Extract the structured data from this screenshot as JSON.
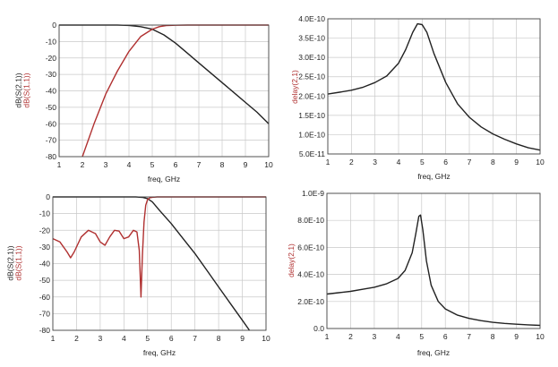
{
  "chart_data": [
    {
      "type": "line",
      "xlabel": "freq, GHz",
      "ylabel_parts": [
        {
          "text": "dB(S(2,1))",
          "color": "#222222"
        },
        {
          "text": "dB(S(1,1))",
          "color": "#b03030"
        }
      ],
      "xlim": [
        1,
        10
      ],
      "ylim": [
        -80,
        0
      ],
      "x_ticks": [
        1,
        2,
        3,
        4,
        5,
        6,
        7,
        8,
        9,
        10
      ],
      "y_ticks": [
        0,
        -10,
        -20,
        -30,
        -40,
        -50,
        -60,
        -70,
        -80
      ],
      "y_tick_labels": [
        "0",
        "-10",
        "-20",
        "-30",
        "-40",
        "-50",
        "-60",
        "-70",
        "-80"
      ],
      "grid": true,
      "series": [
        {
          "color": "#222222",
          "x": [
            1,
            1.5,
            2,
            2.5,
            3,
            3.5,
            4,
            4.5,
            5,
            5.5,
            6,
            6.5,
            7,
            7.5,
            8,
            8.5,
            9,
            9.5,
            10
          ],
          "y": [
            0,
            0,
            0,
            0,
            0,
            0,
            -0.2,
            -1,
            -2.5,
            -6,
            -11,
            -17,
            -23,
            -29,
            -35,
            -41,
            -47,
            -53,
            -60
          ]
        },
        {
          "color": "#b03030",
          "x": [
            2,
            2.5,
            3,
            3.5,
            4,
            4.5,
            5,
            5.3,
            5.6,
            6,
            6.5,
            7,
            8,
            9,
            10
          ],
          "y": [
            -80,
            -60,
            -42,
            -28,
            -16,
            -7,
            -2.5,
            -1,
            -0.3,
            -0.1,
            0,
            0,
            0,
            0,
            0
          ]
        }
      ]
    },
    {
      "type": "line",
      "xlabel": "freq, GHz",
      "ylabel_parts": [
        {
          "text": "delay(2,1)",
          "color": "#b03030"
        }
      ],
      "xlim": [
        1,
        10
      ],
      "ylim": [
        5e-11,
        4e-10
      ],
      "x_ticks": [
        1,
        2,
        3,
        4,
        5,
        6,
        7,
        8,
        9,
        10
      ],
      "y_ticks": [
        5e-11,
        1e-10,
        1.5e-10,
        2e-10,
        2.5e-10,
        3e-10,
        3.5e-10,
        4e-10
      ],
      "y_tick_labels": [
        "5.0E-11",
        "1.0E-10",
        "1.5E-10",
        "2.0E-10",
        "2.5E-10",
        "3.0E-10",
        "3.5E-10",
        "4.0E-10"
      ],
      "grid": true,
      "series": [
        {
          "color": "#222222",
          "x": [
            1,
            1.5,
            2,
            2.5,
            3,
            3.5,
            4,
            4.3,
            4.6,
            4.8,
            5,
            5.2,
            5.5,
            6,
            6.5,
            7,
            7.5,
            8,
            8.5,
            9,
            9.5,
            10
          ],
          "y": [
            2.05e-10,
            2.1e-10,
            2.15e-10,
            2.23e-10,
            2.35e-10,
            2.52e-10,
            2.85e-10,
            3.2e-10,
            3.65e-10,
            3.87e-10,
            3.85e-10,
            3.65e-10,
            3.1e-10,
            2.35e-10,
            1.8e-10,
            1.45e-10,
            1.2e-10,
            1.02e-10,
            8.8e-11,
            7.6e-11,
            6.6e-11,
            6e-11
          ]
        }
      ]
    },
    {
      "type": "line",
      "xlabel": "freq, GHz",
      "ylabel_parts": [
        {
          "text": "dB(S(2,1))",
          "color": "#222222"
        },
        {
          "text": "dB(S(1,1))",
          "color": "#b03030"
        }
      ],
      "xlim": [
        1,
        10
      ],
      "ylim": [
        -80,
        0
      ],
      "x_ticks": [
        1,
        2,
        3,
        4,
        5,
        6,
        7,
        8,
        9,
        10
      ],
      "y_ticks": [
        0,
        -10,
        -20,
        -30,
        -40,
        -50,
        -60,
        -70,
        -80
      ],
      "y_tick_labels": [
        "0",
        "-10",
        "-20",
        "-30",
        "-40",
        "-50",
        "-60",
        "-70",
        "-80"
      ],
      "grid": true,
      "series": [
        {
          "color": "#222222",
          "x": [
            1,
            1.5,
            2,
            2.5,
            3,
            3.5,
            4,
            4.5,
            4.8,
            5,
            5.2,
            5.5,
            6,
            6.5,
            7,
            7.5,
            8,
            8.5,
            9,
            9.3
          ],
          "y": [
            0,
            0,
            0,
            0,
            0,
            0,
            0,
            0,
            -0.3,
            -1,
            -3,
            -8,
            -16,
            -25,
            -34,
            -44,
            -54,
            -64,
            -74,
            -80
          ]
        },
        {
          "color": "#b03030",
          "x": [
            1,
            1.3,
            1.6,
            1.75,
            1.9,
            2.2,
            2.5,
            2.8,
            3,
            3.2,
            3.4,
            3.6,
            3.8,
            4,
            4.2,
            4.4,
            4.55,
            4.65,
            4.72,
            4.78,
            4.85,
            4.92,
            5.0,
            5.1,
            5.2,
            5.4,
            6,
            7,
            8,
            10
          ],
          "y": [
            -25,
            -27,
            -33,
            -36.5,
            -33,
            -24,
            -20,
            -22,
            -27,
            -29,
            -24,
            -20,
            -20.5,
            -25,
            -24,
            -20,
            -21,
            -32,
            -60,
            -35,
            -15,
            -5,
            -1.5,
            -0.5,
            -0.2,
            0,
            0,
            0,
            0,
            0
          ]
        }
      ]
    },
    {
      "type": "line",
      "xlabel": "freq, GHz",
      "ylabel_parts": [
        {
          "text": "delay(2,1)",
          "color": "#b03030"
        }
      ],
      "xlim": [
        1,
        10
      ],
      "ylim": [
        0,
        1e-09
      ],
      "x_ticks": [
        1,
        2,
        3,
        4,
        5,
        6,
        7,
        8,
        9,
        10
      ],
      "y_ticks": [
        0,
        2e-10,
        4e-10,
        6e-10,
        8e-10,
        1e-09
      ],
      "y_tick_labels": [
        "0.0",
        "2.0E-10",
        "4.0E-10",
        "6.0E-10",
        "8.0E-10",
        "1.0E-9"
      ],
      "grid": true,
      "series": [
        {
          "color": "#222222",
          "x": [
            1,
            1.5,
            2,
            2.5,
            3,
            3.5,
            4,
            4.3,
            4.6,
            4.75,
            4.88,
            4.95,
            5.05,
            5.2,
            5.4,
            5.7,
            6,
            6.5,
            7,
            7.5,
            8,
            8.5,
            9,
            9.5,
            10
          ],
          "y": [
            2.55e-10,
            2.65e-10,
            2.75e-10,
            2.9e-10,
            3.05e-10,
            3.3e-10,
            3.7e-10,
            4.3e-10,
            5.6e-10,
            7e-10,
            8.3e-10,
            8.4e-10,
            7.3e-10,
            5e-10,
            3.2e-10,
            2e-10,
            1.45e-10,
            1e-10,
            7.5e-11,
            5.8e-11,
            4.6e-11,
            3.8e-11,
            3.2e-11,
            2.7e-11,
            2.3e-11
          ]
        }
      ]
    }
  ]
}
